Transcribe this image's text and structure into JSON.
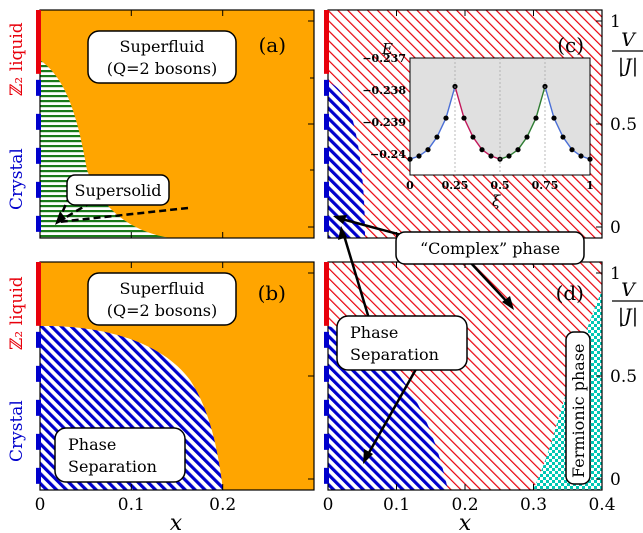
{
  "chart_data": [
    {
      "panel": "(a)",
      "type": "area",
      "xlabel": "x",
      "ylabel": "V/|J|",
      "xlim": [
        0,
        0.3
      ],
      "ylim": [
        0,
        1
      ],
      "x_ticks": [],
      "y_ticks": [],
      "regions": [
        {
          "name": "Superfluid (Q=2 bosons)",
          "color": "#ffa500",
          "pattern": "solid",
          "label_lines": [
            "Superfluid",
            "(Q=2 bosons)"
          ]
        },
        {
          "name": "Supersolid",
          "color": "#1a7a1a",
          "pattern": "horizontal-lines",
          "label_lines": [
            "Supersolid"
          ],
          "boundary": {
            "V": [
              0.0,
              0.15,
              0.3,
              0.45,
              0.6,
              0.7,
              0.78
            ],
            "x": [
              0.14,
              0.08,
              0.045,
              0.03,
              0.02,
              0.01,
              0.0
            ]
          }
        }
      ],
      "left_bar": [
        {
          "name": "Z2 liquid",
          "range": [
            0.72,
            1.0
          ],
          "color": "#e8000b"
        },
        {
          "name": "Crystal",
          "range": [
            0.0,
            0.72
          ],
          "color": "#0000cc"
        }
      ]
    },
    {
      "panel": "(b)",
      "type": "area",
      "xlabel": "x",
      "ylabel": "V/|J|",
      "xlim": [
        0,
        0.3
      ],
      "ylim": [
        0,
        1
      ],
      "x_ticks": [
        "0",
        "0.1",
        "0.2"
      ],
      "y_ticks": [],
      "regions": [
        {
          "name": "Superfluid (Q=2 bosons)",
          "color": "#ffa500",
          "pattern": "solid",
          "label_lines": [
            "Superfluid",
            "(Q=2 bosons)"
          ]
        },
        {
          "name": "Phase Separation",
          "color": "#0000cc",
          "pattern": "diagonal-lines",
          "label_lines": [
            "Phase",
            "Separation"
          ],
          "boundary": {
            "V": [
              0.0,
              0.2,
              0.4,
              0.55,
              0.67,
              0.72
            ],
            "x": [
              0.2,
              0.18,
              0.145,
              0.1,
              0.04,
              0.0
            ]
          }
        }
      ],
      "left_bar": [
        {
          "name": "Z2 liquid",
          "range": [
            0.72,
            1.0
          ],
          "color": "#e8000b"
        },
        {
          "name": "Crystal",
          "range": [
            0.0,
            0.72
          ],
          "color": "#0000cc"
        }
      ]
    },
    {
      "panel": "(c)",
      "type": "area",
      "xlabel": "x",
      "ylabel": "V/|J|",
      "xlim": [
        0,
        0.4
      ],
      "ylim": [
        0,
        1
      ],
      "x_ticks": [],
      "y_ticks": [
        "0",
        "0.5",
        "1"
      ],
      "regions": [
        {
          "name": "“Complex” phase",
          "color": "#e8000b",
          "pattern": "diagonal-lines"
        },
        {
          "name": "Phase Separation",
          "color": "#0000cc",
          "pattern": "diagonal-lines",
          "boundary": {
            "V": [
              0.0,
              0.3,
              0.5,
              0.62,
              0.7
            ],
            "x": [
              0.05,
              0.045,
              0.03,
              0.015,
              0.0
            ]
          }
        }
      ],
      "left_bar": [
        {
          "name": "Z2 liquid",
          "range": [
            0.72,
            1.0
          ],
          "color": "#e8000b"
        },
        {
          "name": "Crystal",
          "range": [
            0.0,
            0.72
          ],
          "color": "#0000cc"
        }
      ]
    },
    {
      "panel": "(d)",
      "type": "area",
      "xlabel": "x",
      "ylabel": "V/|J|",
      "xlim": [
        0,
        0.4
      ],
      "ylim": [
        0,
        1
      ],
      "x_ticks": [
        "0",
        "0.1",
        "0.2",
        "0.3",
        "0.4"
      ],
      "y_ticks": [
        "0",
        "0.5",
        "1"
      ],
      "regions": [
        {
          "name": "“Complex” phase",
          "color": "#e8000b",
          "pattern": "diagonal-lines"
        },
        {
          "name": "Phase Separation",
          "color": "#0000cc",
          "pattern": "diagonal-lines",
          "label_lines": [
            "Phase",
            "Separation"
          ],
          "boundary": {
            "V": [
              0.0,
              0.3,
              0.55,
              0.72
            ],
            "x": [
              0.175,
              0.13,
              0.075,
              0.0
            ]
          }
        },
        {
          "name": "Fermionic phase",
          "color": "#00c8b4",
          "pattern": "checkerboard",
          "label_lines": [
            "Fermionic phase"
          ],
          "boundary": {
            "V": [
              0.0,
              0.35,
              0.7,
              0.88
            ],
            "x": [
              0.3,
              0.33,
              0.37,
              0.4
            ]
          }
        }
      ],
      "left_bar": [
        {
          "name": "Z2 liquid",
          "range": [
            0.72,
            1.0
          ],
          "color": "#e8000b"
        },
        {
          "name": "Crystal",
          "range": [
            0.0,
            0.72
          ],
          "color": "#0000cc"
        }
      ]
    },
    {
      "panel": "(c) inset",
      "type": "line",
      "xlabel": "ξ",
      "ylabel": "E",
      "xlim": [
        0,
        1
      ],
      "ylim": [
        -0.2405,
        -0.2368
      ],
      "x_ticks": [
        "0",
        "0.25",
        "0.5",
        "0.75",
        "1"
      ],
      "y_ticks": [
        "−0.237",
        "−0.238",
        "−0.239",
        "−0.24"
      ],
      "x": [
        0.0,
        0.05,
        0.1,
        0.15,
        0.2,
        0.25,
        0.3,
        0.35,
        0.4,
        0.45,
        0.5,
        0.55,
        0.6,
        0.65,
        0.7,
        0.75,
        0.8,
        0.85,
        0.9,
        0.95,
        1.0
      ],
      "y": [
        -0.24,
        -0.2399,
        -0.2397,
        -0.2393,
        -0.2387,
        -0.2377,
        -0.2387,
        -0.2393,
        -0.2397,
        -0.2399,
        -0.24,
        -0.2399,
        -0.2397,
        -0.2393,
        -0.2387,
        -0.2377,
        -0.2387,
        -0.2393,
        -0.2397,
        -0.2399,
        -0.24
      ],
      "segment_colors": [
        "#4a6fd6",
        "#c2185b",
        "#2e7d32",
        "#4a6fd6"
      ]
    }
  ],
  "labels": {
    "panel_a": "(a)",
    "panel_b": "(b)",
    "panel_c": "(c)",
    "panel_d": "(d)",
    "superfluid_line1": "Superfluid",
    "superfluid_line2": "(Q=2 bosons)",
    "supersolid": "Supersolid",
    "phase_sep_line1": "Phase",
    "phase_sep_line2": "Separation",
    "complex_phase": "“Complex” phase",
    "fermionic_phase": "Fermionic phase",
    "z2_liquid": "ℤ₂ liquid",
    "crystal": "Crystal",
    "x_axis": "x",
    "y_axis_num": "V",
    "y_axis_den": "|J|",
    "inset_x": "ξ",
    "inset_y": "E"
  },
  "colors": {
    "superfluid": "#ffa500",
    "supersolid": "#1a7a1a",
    "phase_separation": "#0000cc",
    "complex": "#e8000b",
    "fermionic": "#00c8b4",
    "z2_bar": "#e8000b",
    "crystal_bar": "#0000cc"
  }
}
